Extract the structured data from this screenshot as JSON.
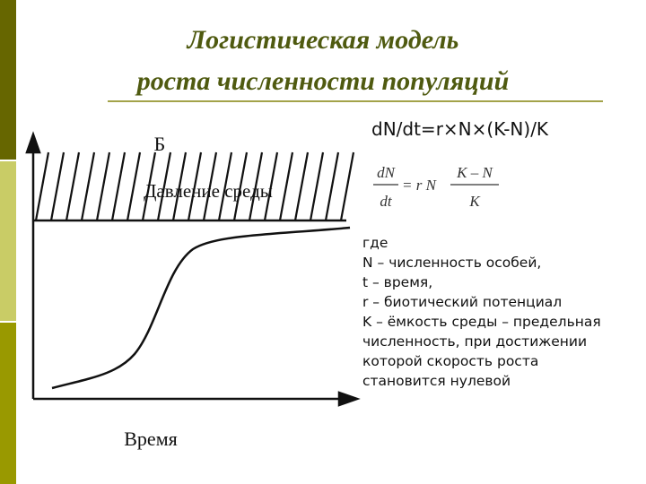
{
  "header": {
    "title_lines": [
      "Логистическая модель",
      "роста численности популяций"
    ]
  },
  "formula": "dN/dt=r×N×(K-N)/K",
  "formula_image": {
    "lhs_num": "dN",
    "lhs_den": "dt",
    "middle": "= r N",
    "rhs_num": "K – N",
    "rhs_den": "K"
  },
  "legend_lines": [
    "где",
    "N – численность особей,",
    "t – время,",
    "r – биотический потенциал",
    "K – ёмкость среды – предельная",
    "численность, при достижении",
    "которой скорость роста",
    "становится нулевой"
  ],
  "diagram": {
    "top_label": "Б",
    "band_label": "Давление среды",
    "x_label": "Время"
  }
}
